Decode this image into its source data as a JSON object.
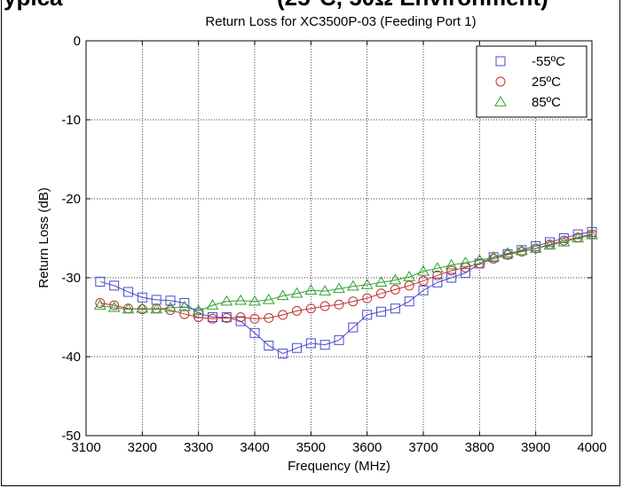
{
  "clipped_header": {
    "left": "ypica",
    "right": "(25°C, 50Ω Environment)"
  },
  "chart_data": {
    "type": "line",
    "title": "Return Loss for XC3500P-03 (Feeding Port 1)",
    "xlabel": "Frequency (MHz)",
    "ylabel": "Return Loss (dB)",
    "xlim": [
      3100,
      4000
    ],
    "ylim": [
      -50,
      0
    ],
    "xticks": [
      3100,
      3200,
      3300,
      3400,
      3500,
      3600,
      3700,
      3800,
      3900,
      4000
    ],
    "yticks": [
      0,
      -10,
      -20,
      -30,
      -40,
      -50
    ],
    "grid": true,
    "legend_position": "top-right",
    "x": [
      3125,
      3150,
      3175,
      3200,
      3225,
      3250,
      3275,
      3300,
      3325,
      3350,
      3375,
      3400,
      3425,
      3450,
      3475,
      3500,
      3525,
      3550,
      3575,
      3600,
      3625,
      3650,
      3675,
      3700,
      3725,
      3750,
      3775,
      3800,
      3825,
      3850,
      3875,
      3900,
      3925,
      3950,
      3975,
      4000
    ],
    "series": [
      {
        "name": "-55ºC",
        "marker": "square",
        "color": "#4a4ad0",
        "values": [
          -30.5,
          -31.0,
          -31.8,
          -32.5,
          -32.8,
          -32.9,
          -33.2,
          -34.5,
          -35.0,
          -35.0,
          -35.5,
          -37.0,
          -38.6,
          -39.6,
          -38.9,
          -38.3,
          -38.5,
          -37.9,
          -36.3,
          -34.7,
          -34.3,
          -33.9,
          -33.0,
          -31.6,
          -30.6,
          -30.0,
          -29.4,
          -28.2,
          -27.4,
          -27.0,
          -26.5,
          -26.0,
          -25.5,
          -25.0,
          -24.5,
          -24.2
        ]
      },
      {
        "name": "25ºC",
        "marker": "circle",
        "color": "#c03030",
        "values": [
          -33.2,
          -33.5,
          -33.9,
          -34.0,
          -33.9,
          -34.1,
          -34.6,
          -35.0,
          -35.2,
          -35.1,
          -35.0,
          -35.2,
          -35.1,
          -34.7,
          -34.2,
          -33.9,
          -33.6,
          -33.4,
          -33.0,
          -32.6,
          -32.0,
          -31.5,
          -31.0,
          -30.4,
          -29.7,
          -29.1,
          -28.7,
          -28.2,
          -27.6,
          -27.1,
          -26.7,
          -26.3,
          -25.8,
          -25.3,
          -24.9,
          -24.5
        ]
      },
      {
        "name": "85ºC",
        "marker": "triangle",
        "color": "#30a030",
        "values": [
          -33.5,
          -33.8,
          -34.0,
          -33.9,
          -34.0,
          -33.8,
          -33.7,
          -34.2,
          -33.5,
          -33.0,
          -32.9,
          -33.0,
          -32.8,
          -32.3,
          -32.0,
          -31.6,
          -31.7,
          -31.4,
          -31.1,
          -30.9,
          -30.6,
          -30.3,
          -29.9,
          -29.2,
          -28.8,
          -28.4,
          -28.1,
          -27.8,
          -27.4,
          -26.9,
          -26.6,
          -26.3,
          -25.9,
          -25.5,
          -25.0,
          -24.6
        ]
      }
    ]
  }
}
